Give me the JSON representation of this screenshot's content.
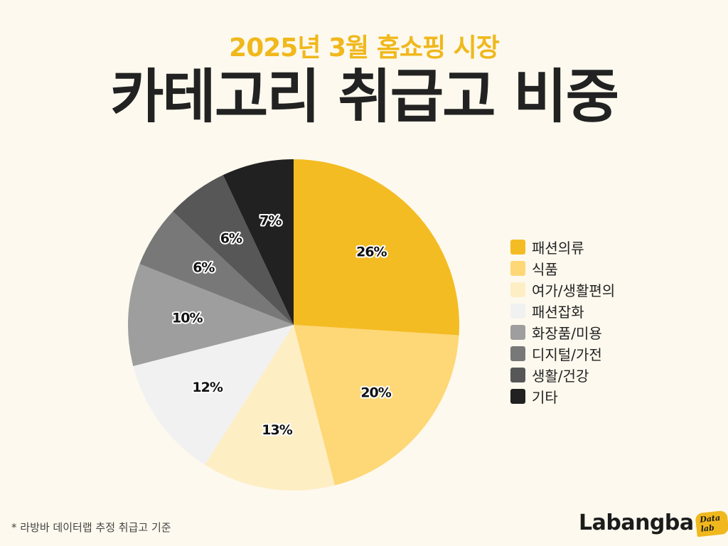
{
  "header": {
    "subtitle": "2025년 3월 홈쇼핑 시장",
    "title": "카테고리 취급고 비중"
  },
  "chart_data": {
    "type": "pie",
    "title": "카테고리 취급고 비중",
    "subtitle": "2025년 3월 홈쇼핑 시장",
    "unit": "%",
    "start_angle": "12 o'clock",
    "direction": "clockwise",
    "legend_position": "right",
    "slices": [
      {
        "name": "패션의류",
        "value": 26,
        "label": "26%",
        "color": "#f4bc23"
      },
      {
        "name": "식품",
        "value": 20,
        "label": "20%",
        "color": "#fed776"
      },
      {
        "name": "여가/생활편의",
        "value": 13,
        "label": "13%",
        "color": "#feeec4"
      },
      {
        "name": "패션잡화",
        "value": 12,
        "label": "12%",
        "color": "#f1f1f1"
      },
      {
        "name": "화장품/미용",
        "value": 10,
        "label": "10%",
        "color": "#9e9e9e"
      },
      {
        "name": "디지털/가전",
        "value": 6,
        "label": "6%",
        "color": "#787878"
      },
      {
        "name": "생활/건강",
        "value": 6,
        "label": "6%",
        "color": "#575757"
      },
      {
        "name": "기타",
        "value": 7,
        "label": "7%",
        "color": "#212121"
      }
    ]
  },
  "footnote": "* 라방바 데이터랩 추정 취급고 기준",
  "brand": {
    "logo_text": "Labangba",
    "badge_text": "Data lab",
    "accent": "#f0b81c"
  },
  "colors": {
    "background": "#fdf9ee",
    "title": "#222222",
    "subtitle": "#f0b81c"
  }
}
